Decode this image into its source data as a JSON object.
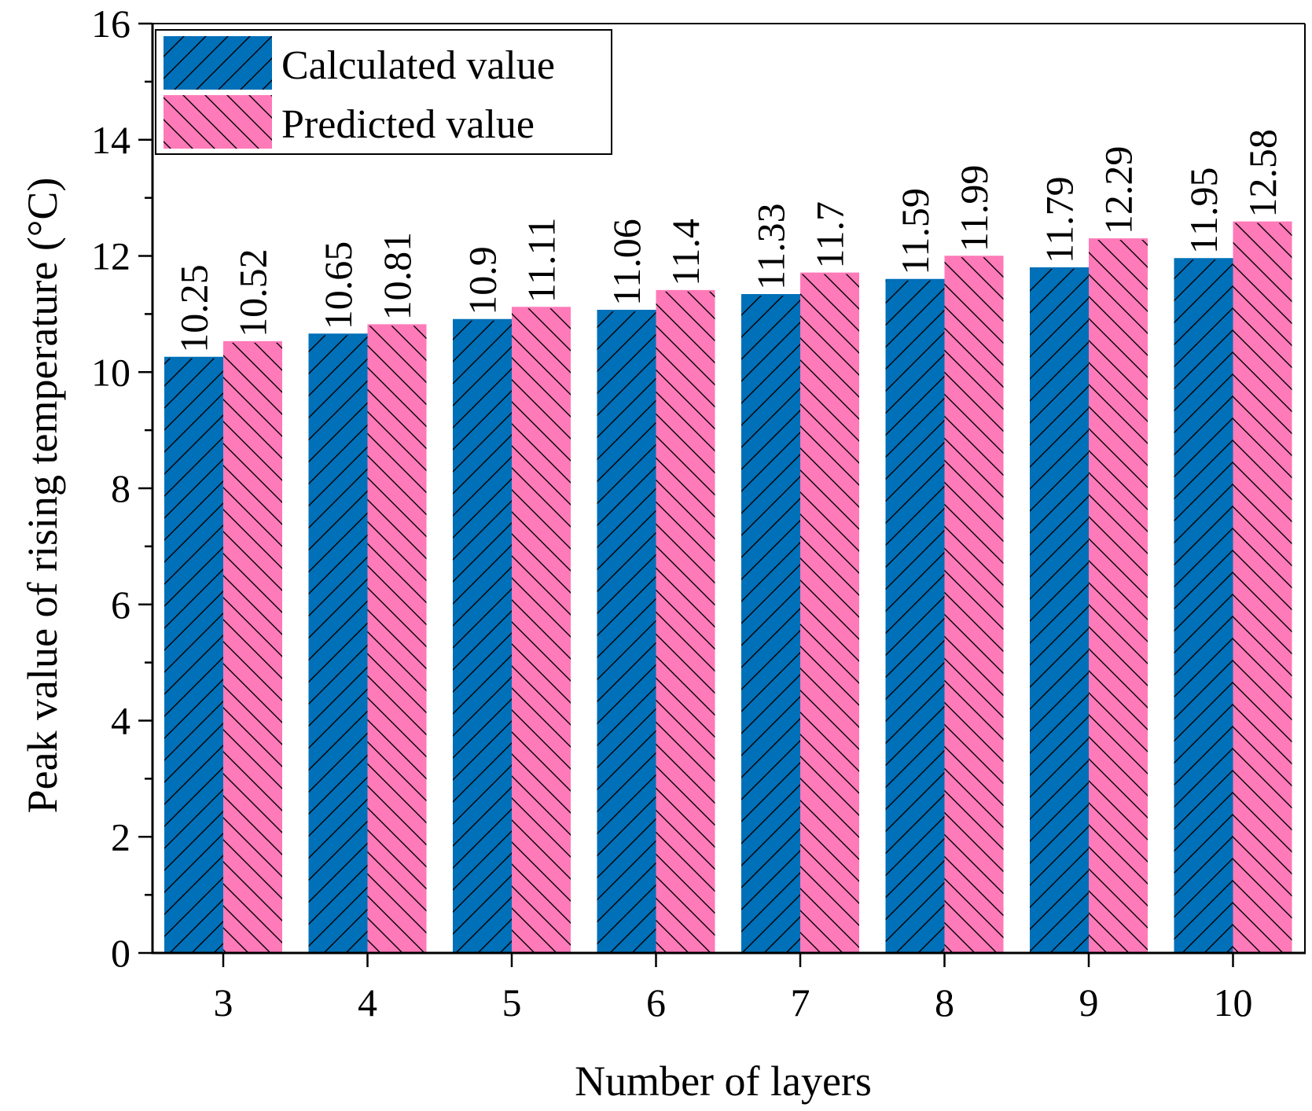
{
  "chart_data": {
    "type": "bar",
    "title": "",
    "xlabel": "Number of layers",
    "ylabel": "Peak value of rising temperature (°C)",
    "categories": [
      "3",
      "4",
      "5",
      "6",
      "7",
      "8",
      "9",
      "10"
    ],
    "series": [
      {
        "name": "Calculated value",
        "color": "#0070b8",
        "values": [
          10.25,
          10.65,
          10.9,
          11.06,
          11.33,
          11.59,
          11.79,
          11.95
        ],
        "labels": [
          "10.25",
          "10.65",
          "10.9",
          "11.06",
          "11.33",
          "11.59",
          "11.79",
          "11.95"
        ]
      },
      {
        "name": "Predicted value",
        "color": "#ff7ab8",
        "values": [
          10.52,
          10.81,
          11.11,
          11.4,
          11.7,
          11.99,
          12.29,
          12.58
        ],
        "labels": [
          "10.52",
          "10.81",
          "11.11",
          "11.4",
          "11.7",
          "11.99",
          "12.29",
          "12.58"
        ]
      }
    ],
    "ylim": [
      0,
      16
    ],
    "yticks": [
      "0",
      "2",
      "4",
      "6",
      "8",
      "10",
      "12",
      "14",
      "16"
    ],
    "grid": false,
    "legend_position": "top-left"
  }
}
